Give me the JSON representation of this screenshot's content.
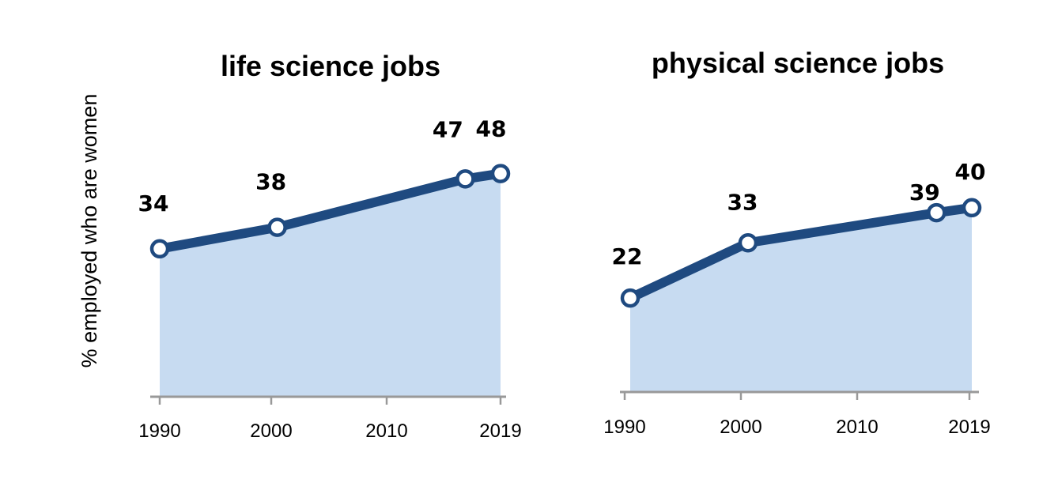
{
  "ylabel": "% employed who are women",
  "colors": {
    "line": "#1f4a80",
    "area": "#c7dbf1",
    "axis": "#999999",
    "marker_fill": "#ffffff"
  },
  "chart_data": [
    {
      "type": "area",
      "title": "life science jobs",
      "ylabel": "% employed who are women",
      "xlim": [
        1990,
        2019
      ],
      "x_ticks": [
        "1990",
        "2000",
        "2010",
        "2019"
      ],
      "x": [
        1990,
        2000,
        2016,
        2019
      ],
      "series": [
        {
          "values": [
            34,
            38,
            47,
            48
          ]
        }
      ],
      "data_labels": [
        "34",
        "38",
        "47",
        "48"
      ]
    },
    {
      "type": "area",
      "title": "physical science jobs",
      "xlim": [
        1990,
        2019
      ],
      "x_ticks": [
        "1990",
        "2000",
        "2010",
        "2019"
      ],
      "x": [
        1990,
        2000,
        2016,
        2019
      ],
      "series": [
        {
          "values": [
            22,
            33,
            39,
            40
          ]
        }
      ],
      "data_labels": [
        "22",
        "33",
        "39",
        "40"
      ]
    }
  ]
}
